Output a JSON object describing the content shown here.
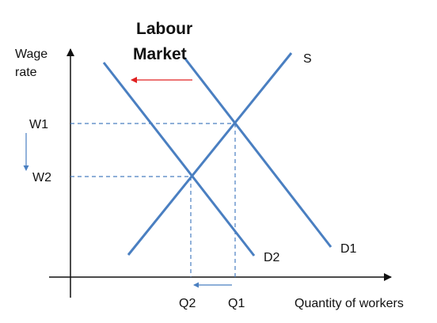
{
  "diagram": {
    "title_lines": [
      "Labour",
      "Market"
    ],
    "y_axis_label_lines": [
      "Wage",
      "rate"
    ],
    "x_axis_label": "Quantity of workers",
    "curves": {
      "supply": "S",
      "demand_original": "D1",
      "demand_new": "D2"
    },
    "wage_levels": [
      "W1",
      "W2"
    ],
    "quantity_levels": [
      "Q1",
      "Q2"
    ],
    "colors": {
      "curve": "#4a7fc1",
      "guide": "#4a7fc1",
      "shift_arrow": "#e02020",
      "axis": "#111111",
      "text": "#111111"
    }
  }
}
